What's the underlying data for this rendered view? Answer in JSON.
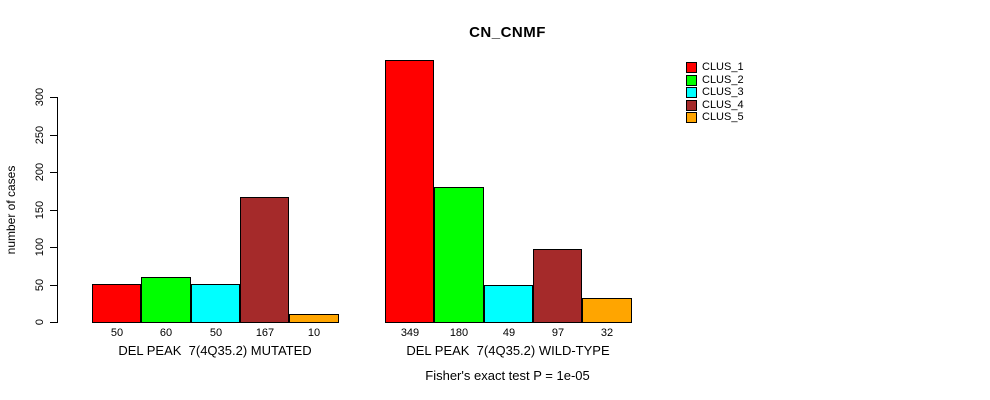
{
  "chart_data": {
    "type": "bar",
    "title": "CN_CNMF",
    "ylabel": "number of cases",
    "xlabel": "",
    "ylim": [
      0,
      300
    ],
    "yticks": [
      0,
      50,
      100,
      150,
      200,
      250,
      300
    ],
    "grid": false,
    "legend_position": "right",
    "series": [
      {
        "name": "CLUS_1",
        "color": "#FF0000"
      },
      {
        "name": "CLUS_2",
        "color": "#00FF00"
      },
      {
        "name": "CLUS_3",
        "color": "#00FFFF"
      },
      {
        "name": "CLUS_4",
        "color": "#A52A2A"
      },
      {
        "name": "CLUS_5",
        "color": "#FFA500"
      }
    ],
    "groups": [
      {
        "label": "DEL PEAK  7(4Q35.2) MUTATED",
        "values": [
          50,
          60,
          50,
          167,
          10
        ]
      },
      {
        "label": "DEL PEAK  7(4Q35.2) WILD-TYPE",
        "values": [
          349,
          180,
          49,
          97,
          32
        ]
      }
    ],
    "annotation": "Fisher's exact test P = 1e-05"
  }
}
